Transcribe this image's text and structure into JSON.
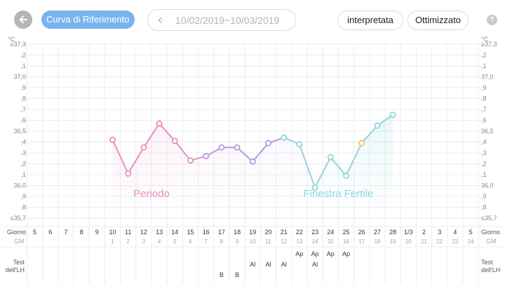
{
  "toolbar": {
    "reference_curve_label": "Curva di Riferimento",
    "date_range": "10/02/2019~10/03/2019",
    "interpreted_label": "interpretata",
    "optimized_label": "Ottimizzato",
    "help_label": "?"
  },
  "chart_data": {
    "type": "line",
    "y_unit": "°C",
    "y_tick_labels": [
      "≥37,3",
      ",2",
      ",1",
      "37,0",
      ",9",
      ",8",
      ",7",
      ",6",
      "36,5",
      ",4",
      ",3",
      ",2",
      ",1",
      "36,0",
      ",9",
      ",8",
      "≤35,7"
    ],
    "ylim": [
      35.7,
      37.3
    ],
    "row_labels": {
      "day": "Giorno",
      "cycle_day": "GM",
      "lh_test": "Test dell'LH"
    },
    "day_labels": [
      "5",
      "6",
      "7",
      "8",
      "9",
      "10",
      "11",
      "12",
      "13",
      "14",
      "15",
      "16",
      "17",
      "18",
      "19",
      "20",
      "21",
      "22",
      "23",
      "24",
      "25",
      "26",
      "27",
      "28",
      "1/3",
      "2",
      "3",
      "4",
      "5"
    ],
    "cycle_days": [
      "",
      "",
      "",
      "",
      "",
      "1",
      "2",
      "3",
      "4",
      "5",
      "6",
      "7",
      "8",
      "9",
      "10",
      "11",
      "12",
      "13",
      "14",
      "15",
      "16",
      "17",
      "18",
      "19",
      "20",
      "21",
      "22",
      "23",
      "24"
    ],
    "temperatures": [
      null,
      null,
      null,
      null,
      null,
      36.42,
      36.11,
      36.35,
      36.57,
      36.41,
      36.23,
      36.27,
      36.35,
      36.35,
      36.22,
      36.39,
      36.44,
      36.38,
      35.98,
      36.26,
      36.09,
      36.39,
      36.55,
      36.65,
      null,
      null,
      null,
      null,
      null
    ],
    "highlight_point": {
      "day_index": 21,
      "color": "#f2c94c"
    },
    "phases": [
      {
        "label": "Periodo",
        "start_index": 5,
        "end_index": 10,
        "color": "#e98fbf"
      },
      {
        "label": "Finestra Fertile",
        "start_index": 16,
        "end_index": 23,
        "color": "#8fd6dd"
      }
    ],
    "lh_tests": [
      {
        "day_index": 12,
        "results": [
          "B"
        ]
      },
      {
        "day_index": 13,
        "results": [
          "B"
        ]
      },
      {
        "day_index": 14,
        "results": [
          "Al"
        ]
      },
      {
        "day_index": 15,
        "results": [
          "Al"
        ]
      },
      {
        "day_index": 16,
        "results": [
          "Al"
        ]
      },
      {
        "day_index": 17,
        "results": [
          "Ap"
        ]
      },
      {
        "day_index": 18,
        "results": [
          "Ap",
          "Al"
        ]
      },
      {
        "day_index": 19,
        "results": [
          "Ap"
        ]
      },
      {
        "day_index": 20,
        "results": [
          "Ap"
        ]
      }
    ],
    "colors": {
      "period": "#e98fbf",
      "middle": "#b59be0",
      "fertile": "#8fd6dd",
      "grid": "#ececef"
    },
    "grid": true
  }
}
